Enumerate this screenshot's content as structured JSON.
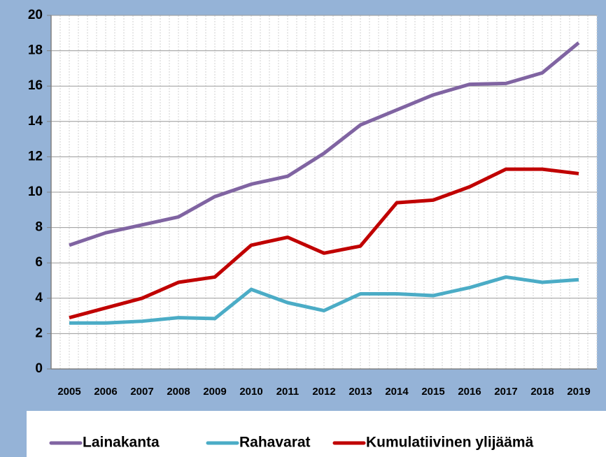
{
  "chart_data": {
    "type": "line",
    "categories": [
      "2005",
      "2006",
      "2007",
      "2008",
      "2009",
      "2010",
      "2011",
      "2012",
      "2013",
      "2014",
      "2015",
      "2016",
      "2017",
      "2018",
      "2019"
    ],
    "series": [
      {
        "name": "Lainakanta",
        "color": "#8064a2",
        "values": [
          7.0,
          7.7,
          8.15,
          8.6,
          9.75,
          10.45,
          10.9,
          12.2,
          13.8,
          14.65,
          15.5,
          16.1,
          16.15,
          16.75,
          18.45
        ]
      },
      {
        "name": "Rahavarat",
        "color": "#4bacc6",
        "values": [
          2.6,
          2.6,
          2.7,
          2.9,
          2.85,
          4.5,
          3.75,
          3.3,
          4.25,
          4.25,
          4.15,
          4.6,
          5.2,
          4.9,
          5.05
        ]
      },
      {
        "name": "Kumulatiivinen ylijäämä",
        "color": "#c00000",
        "values": [
          2.9,
          3.45,
          4.0,
          4.9,
          5.2,
          7.0,
          7.45,
          6.55,
          6.95,
          9.4,
          9.55,
          10.3,
          11.3,
          11.3,
          11.05
        ]
      }
    ],
    "ylim": [
      0,
      20
    ],
    "yticks": [
      0,
      2,
      4,
      6,
      8,
      10,
      12,
      14,
      16,
      18,
      20
    ],
    "grid": true,
    "legend": "bottom"
  }
}
